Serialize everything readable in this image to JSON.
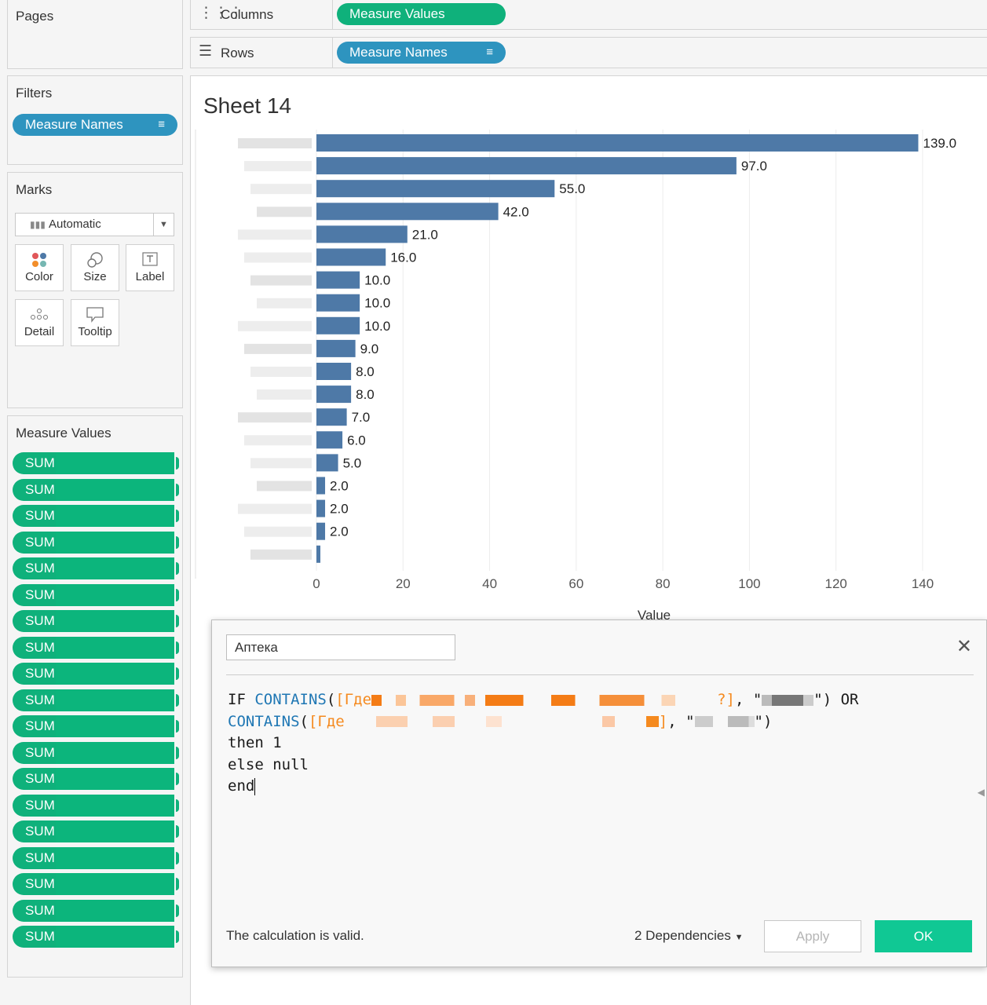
{
  "pages": {
    "title": "Pages"
  },
  "filters": {
    "title": "Filters",
    "pill": "Measure Names",
    "sort_icon": "sort-icon"
  },
  "marks": {
    "title": "Marks",
    "type": "Automatic",
    "buttons": [
      {
        "label": "Color",
        "icon": "color-icon"
      },
      {
        "label": "Size",
        "icon": "size-icon"
      },
      {
        "label": "Label",
        "icon": "label-icon"
      },
      {
        "label": "Detail",
        "icon": "detail-icon"
      },
      {
        "label": "Tooltip",
        "icon": "tooltip-icon"
      }
    ]
  },
  "measure_values": {
    "title": "Measure Values",
    "items": [
      "SUM",
      "SUM",
      "SUM",
      "SUM",
      "SUM",
      "SUM",
      "SUM",
      "SUM",
      "SUM",
      "SUM",
      "SUM",
      "SUM",
      "SUM",
      "SUM",
      "SUM",
      "SUM",
      "SUM",
      "SUM",
      "SUM"
    ]
  },
  "shelves": {
    "columns_label": "Columns",
    "columns_pill": "Measure Values",
    "rows_label": "Rows",
    "rows_pill": "Measure Names"
  },
  "sheet": {
    "title": "Sheet 14"
  },
  "chart_data": {
    "type": "bar",
    "orientation": "horizontal",
    "values": [
      139.0,
      97.0,
      55.0,
      42.0,
      21.0,
      16.0,
      10.0,
      10.0,
      10.0,
      9.0,
      8.0,
      8.0,
      7.0,
      6.0,
      5.0,
      2.0,
      2.0,
      2.0,
      0.5
    ],
    "data_labels": [
      "139.0",
      "97.0",
      "55.0",
      "42.0",
      "21.0",
      "16.0",
      "10.0",
      "10.0",
      "10.0",
      "9.0",
      "8.0",
      "8.0",
      "7.0",
      "6.0",
      "5.0",
      "2.0",
      "2.0",
      "2.0",
      ""
    ],
    "xlabel": "Value",
    "xlim": [
      0,
      145
    ],
    "xticks": [
      0,
      20,
      40,
      60,
      80,
      100,
      120,
      140
    ],
    "grid": true,
    "bar_color": "#4e79a7"
  },
  "dialog": {
    "name": "Аптека",
    "code": {
      "l1_if": "IF ",
      "l1_fn": "CONTAINS",
      "l1_open": "(",
      "l1_field": "[Где",
      "l1_fieldend": "?]",
      "l1_comma": ", \"",
      "l1_close": "\") OR",
      "l2_fn": "CONTAINS",
      "l2_open": "(",
      "l2_field": "[Где",
      "l2_fieldend": "]",
      "l2_comma": ", \"",
      "l2_close": "\")",
      "l3": "then 1",
      "l4": "else null",
      "l5": "end"
    },
    "status": "The calculation is valid.",
    "dependencies": "2 Dependencies",
    "apply_label": "Apply",
    "ok_label": "OK",
    "accent": "#10c894"
  }
}
